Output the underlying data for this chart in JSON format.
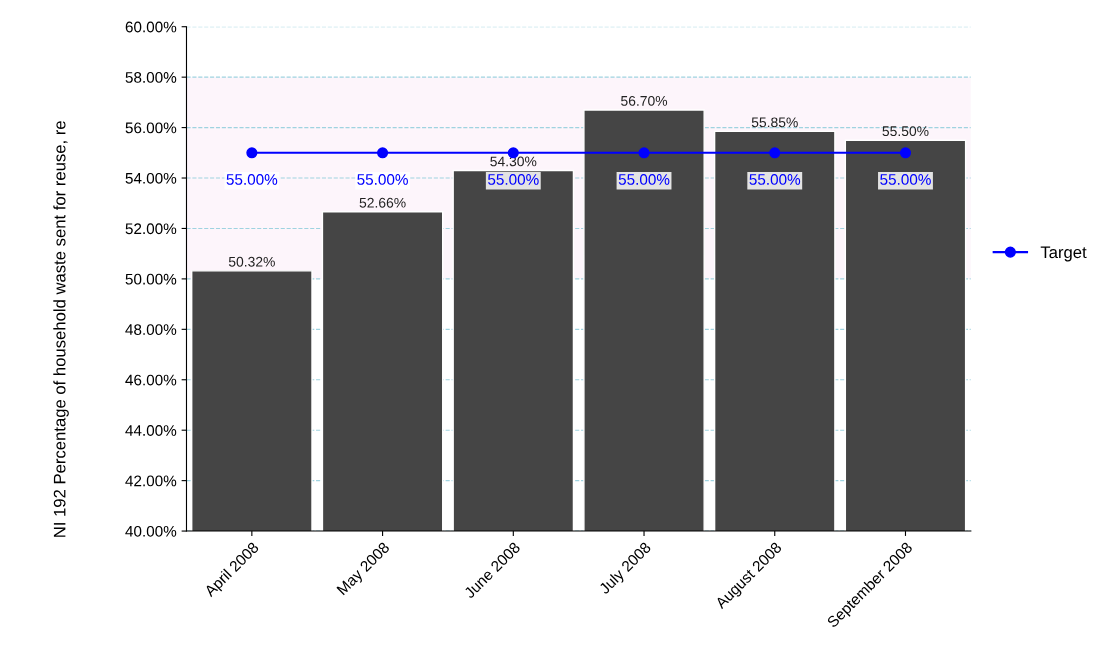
{
  "chart_data": {
    "type": "bar",
    "ylabel": "NI 192 Percentage of household waste sent for reuse, re",
    "categories": [
      "April 2008",
      "May 2008",
      "June 2008",
      "July 2008",
      "August 2008",
      "September 2008"
    ],
    "series": [
      {
        "color": "#454545",
        "values": [
          50.32,
          52.66,
          54.3,
          56.7,
          55.85,
          55.5
        ],
        "value_labels": [
          "50.32%",
          "52.66%",
          "54.30%",
          "56.70%",
          "55.85%",
          "55.50%"
        ]
      },
      {
        "type": "line",
        "name": "Target",
        "color": "#0000ff",
        "values": [
          55,
          55,
          55,
          55,
          55,
          55
        ],
        "value_labels": [
          "55.00%",
          "55.00%",
          "55.00%",
          "55.00%",
          "55.00%",
          "55.00%"
        ]
      }
    ],
    "ylim": [
      40,
      60
    ],
    "yticks": [
      {
        "value": 40,
        "label": "40.00%"
      },
      {
        "value": 42,
        "label": "42.00%"
      },
      {
        "value": 44,
        "label": "44.00%"
      },
      {
        "value": 46,
        "label": "46.00%"
      },
      {
        "value": 48,
        "label": "48.00%"
      },
      {
        "value": 50,
        "label": "50.00%"
      },
      {
        "value": 52,
        "label": "52.00%"
      },
      {
        "value": 54,
        "label": "54.00%"
      },
      {
        "value": 56,
        "label": "56.00%"
      },
      {
        "value": 58,
        "label": "58.00%"
      },
      {
        "value": 60,
        "label": "60.00%"
      }
    ],
    "bands": [
      {
        "axis": "y",
        "from": 50,
        "to": 58,
        "color": "#fdf5fb"
      }
    ],
    "grid": "y",
    "legend": "right",
    "marker": "circle"
  }
}
